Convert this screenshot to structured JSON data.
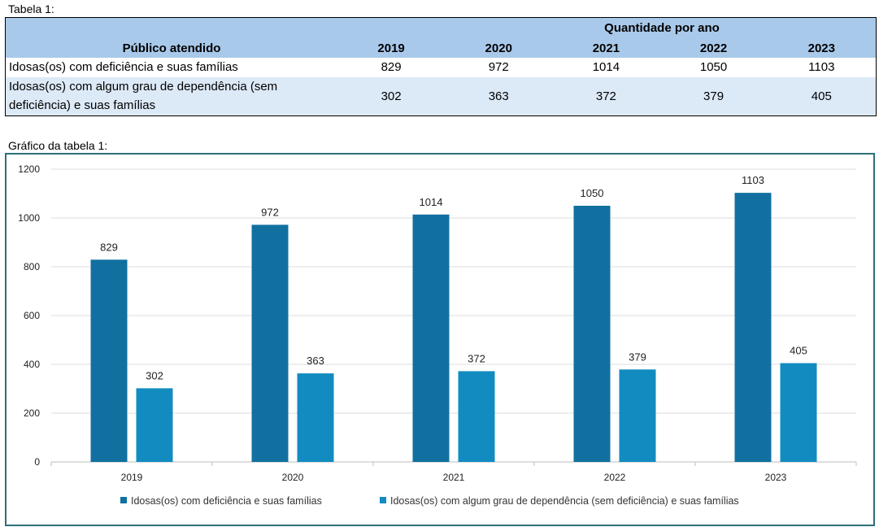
{
  "table": {
    "caption": "Tabela 1:",
    "group_header": "Quantidade por ano",
    "row_header": "Público atendido",
    "years": [
      "2019",
      "2020",
      "2021",
      "2022",
      "2023"
    ],
    "rows": [
      {
        "label": "Idosas(os) com deficiência e suas famílias",
        "values": [
          "829",
          "972",
          "1014",
          "1050",
          "1103"
        ]
      },
      {
        "label_line1": "Idosas(os) com algum grau de dependência (sem",
        "label_line2": "deficiência) e suas famílias",
        "values": [
          "302",
          "363",
          "372",
          "379",
          "405"
        ]
      }
    ]
  },
  "chart_caption": "Gráfico da tabela 1:",
  "chart_data": {
    "type": "bar",
    "title": "",
    "categories": [
      "2019",
      "2020",
      "2021",
      "2022",
      "2023"
    ],
    "series": [
      {
        "name": "Idosas(os) com deficiência e suas famílias",
        "values": [
          829,
          972,
          1014,
          1050,
          1103
        ],
        "color": "#1170a0"
      },
      {
        "name": "Idosas(os) com algum grau de dependência (sem deficiência) e suas famílias",
        "values": [
          302,
          363,
          372,
          379,
          405
        ],
        "color": "#128cc0"
      }
    ],
    "ylim": [
      0,
      1200
    ],
    "yticks": [
      0,
      200,
      400,
      600,
      800,
      1000,
      1200
    ],
    "xlabel": "",
    "ylabel": "",
    "grid": true,
    "legend_position": "bottom"
  }
}
